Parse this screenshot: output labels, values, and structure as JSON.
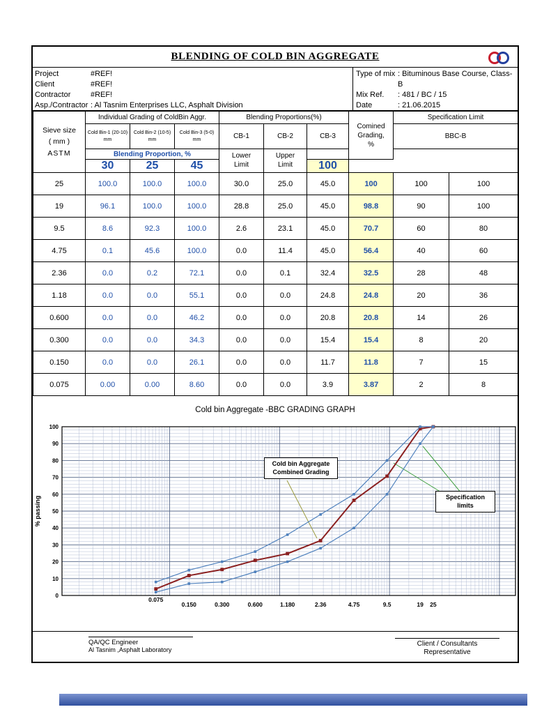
{
  "page": {
    "title": "BLENDING OF COLD BIN AGGREGATE"
  },
  "logo": {
    "name": "double-ring-logo",
    "left_color": "#c81e2e",
    "right_color": "#24409e"
  },
  "info": {
    "left": [
      {
        "label": "Project",
        "value": "#REF!"
      },
      {
        "label": "Client",
        "value": "#REF!"
      },
      {
        "label": "Contractor",
        "value": "#REF!"
      },
      {
        "label": "Asp./Contractor",
        "value": ": Al Tasnim Enterprises LLC, Asphalt Division"
      }
    ],
    "right": [
      {
        "label": "Type of mix",
        "value": ": Bituminous Base Course, Class-B"
      },
      {
        "label": "Mix Ref.",
        "value": ": 481 / BC / 15"
      },
      {
        "label": "Date",
        "value": ": 21.06.2015"
      }
    ]
  },
  "table": {
    "header": {
      "sieve_line1": "Sieve size",
      "sieve_line2": "( mm )",
      "sieve_line3": "ASTM",
      "individual": "Individual Grading of ColdBin Aggr.",
      "blending": "Blending Proportions(%)",
      "combined_line1": "Comined",
      "combined_line2": "Grading,",
      "combined_line3": "%",
      "spec": "Specification Limit",
      "spec_sub": "BBC-B",
      "bins": [
        "Cold Bin-1 (20-10) mm",
        "Cold Bin-2 (10-5) mm",
        "Cold Bin-3 (5-0) mm"
      ],
      "cb": [
        "CB-1",
        "CB-2",
        "CB-3"
      ],
      "blend_prop_label": "Blending Proportion, %",
      "proportions": [
        "30",
        "25",
        "45"
      ],
      "proportion_total": "100",
      "lower": "Lower Limit",
      "upper": "Upper Limit"
    },
    "rows": [
      {
        "sieve": "25",
        "cb": [
          "100.0",
          "100.0",
          "100.0"
        ],
        "bp": [
          "30.0",
          "25.0",
          "45.0"
        ],
        "combined": "100",
        "lower": "100",
        "upper": "100"
      },
      {
        "sieve": "19",
        "cb": [
          "96.1",
          "100.0",
          "100.0"
        ],
        "bp": [
          "28.8",
          "25.0",
          "45.0"
        ],
        "combined": "98.8",
        "lower": "90",
        "upper": "100"
      },
      {
        "sieve": "9.5",
        "cb": [
          "8.6",
          "92.3",
          "100.0"
        ],
        "bp": [
          "2.6",
          "23.1",
          "45.0"
        ],
        "combined": "70.7",
        "lower": "60",
        "upper": "80"
      },
      {
        "sieve": "4.75",
        "cb": [
          "0.1",
          "45.6",
          "100.0"
        ],
        "bp": [
          "0.0",
          "11.4",
          "45.0"
        ],
        "combined": "56.4",
        "lower": "40",
        "upper": "60"
      },
      {
        "sieve": "2.36",
        "cb": [
          "0.0",
          "0.2",
          "72.1"
        ],
        "bp": [
          "0.0",
          "0.1",
          "32.4"
        ],
        "combined": "32.5",
        "lower": "28",
        "upper": "48"
      },
      {
        "sieve": "1.18",
        "cb": [
          "0.0",
          "0.0",
          "55.1"
        ],
        "bp": [
          "0.0",
          "0.0",
          "24.8"
        ],
        "combined": "24.8",
        "lower": "20",
        "upper": "36"
      },
      {
        "sieve": "0.600",
        "cb": [
          "0.0",
          "0.0",
          "46.2"
        ],
        "bp": [
          "0.0",
          "0.0",
          "20.8"
        ],
        "combined": "20.8",
        "lower": "14",
        "upper": "26"
      },
      {
        "sieve": "0.300",
        "cb": [
          "0.0",
          "0.0",
          "34.3"
        ],
        "bp": [
          "0.0",
          "0.0",
          "15.4"
        ],
        "combined": "15.4",
        "lower": "8",
        "upper": "20"
      },
      {
        "sieve": "0.150",
        "cb": [
          "0.0",
          "0.0",
          "26.1"
        ],
        "bp": [
          "0.0",
          "0.0",
          "11.7"
        ],
        "combined": "11.8",
        "lower": "7",
        "upper": "15"
      },
      {
        "sieve": "0.075",
        "cb": [
          "0.00",
          "0.00",
          "8.60"
        ],
        "bp": [
          "0.0",
          "0.0",
          "3.9"
        ],
        "combined": "3.87",
        "lower": "2",
        "upper": "8"
      }
    ]
  },
  "chart_data": {
    "type": "line",
    "title": "Cold bin Aggregate -BBC GRADING GRAPH",
    "ylabel": "% passing",
    "xscale": "log",
    "ylim": [
      0,
      100
    ],
    "x_sieves": [
      0.075,
      0.15,
      0.3,
      0.6,
      1.18,
      2.36,
      4.75,
      9.5,
      19,
      25
    ],
    "x_tick_labels": [
      "0.075",
      "0.150",
      "0.300",
      "0.600",
      "1.180",
      "2.36",
      "4.75",
      "9.5",
      "19",
      "25"
    ],
    "series": [
      {
        "name": "Cold bin Aggregate Combined Grading",
        "color": "#8b2020",
        "values": [
          3.87,
          11.8,
          15.4,
          20.8,
          24.8,
          32.5,
          56.4,
          70.7,
          98.8,
          100
        ]
      },
      {
        "name": "Specification lower limit",
        "color": "#4f81bd",
        "values": [
          2,
          7,
          8,
          14,
          20,
          28,
          40,
          60,
          90,
          100
        ]
      },
      {
        "name": "Specification upper limit",
        "color": "#4f81bd",
        "values": [
          8,
          15,
          20,
          26,
          36,
          48,
          60,
          80,
          100,
          100
        ]
      }
    ],
    "annotations": [
      "Cold bin Aggregate Combined Grading",
      "Specification limits"
    ],
    "leader_colors": {
      "combined": "#9a9a40",
      "spec": "#3f9e3f"
    }
  },
  "footer": {
    "left_title": "QA/QC Engineer",
    "left_sub": "Al Tasnim ,Asphalt Laboratory",
    "right_line1": "Client / Consultants",
    "right_line2": "Representative"
  }
}
